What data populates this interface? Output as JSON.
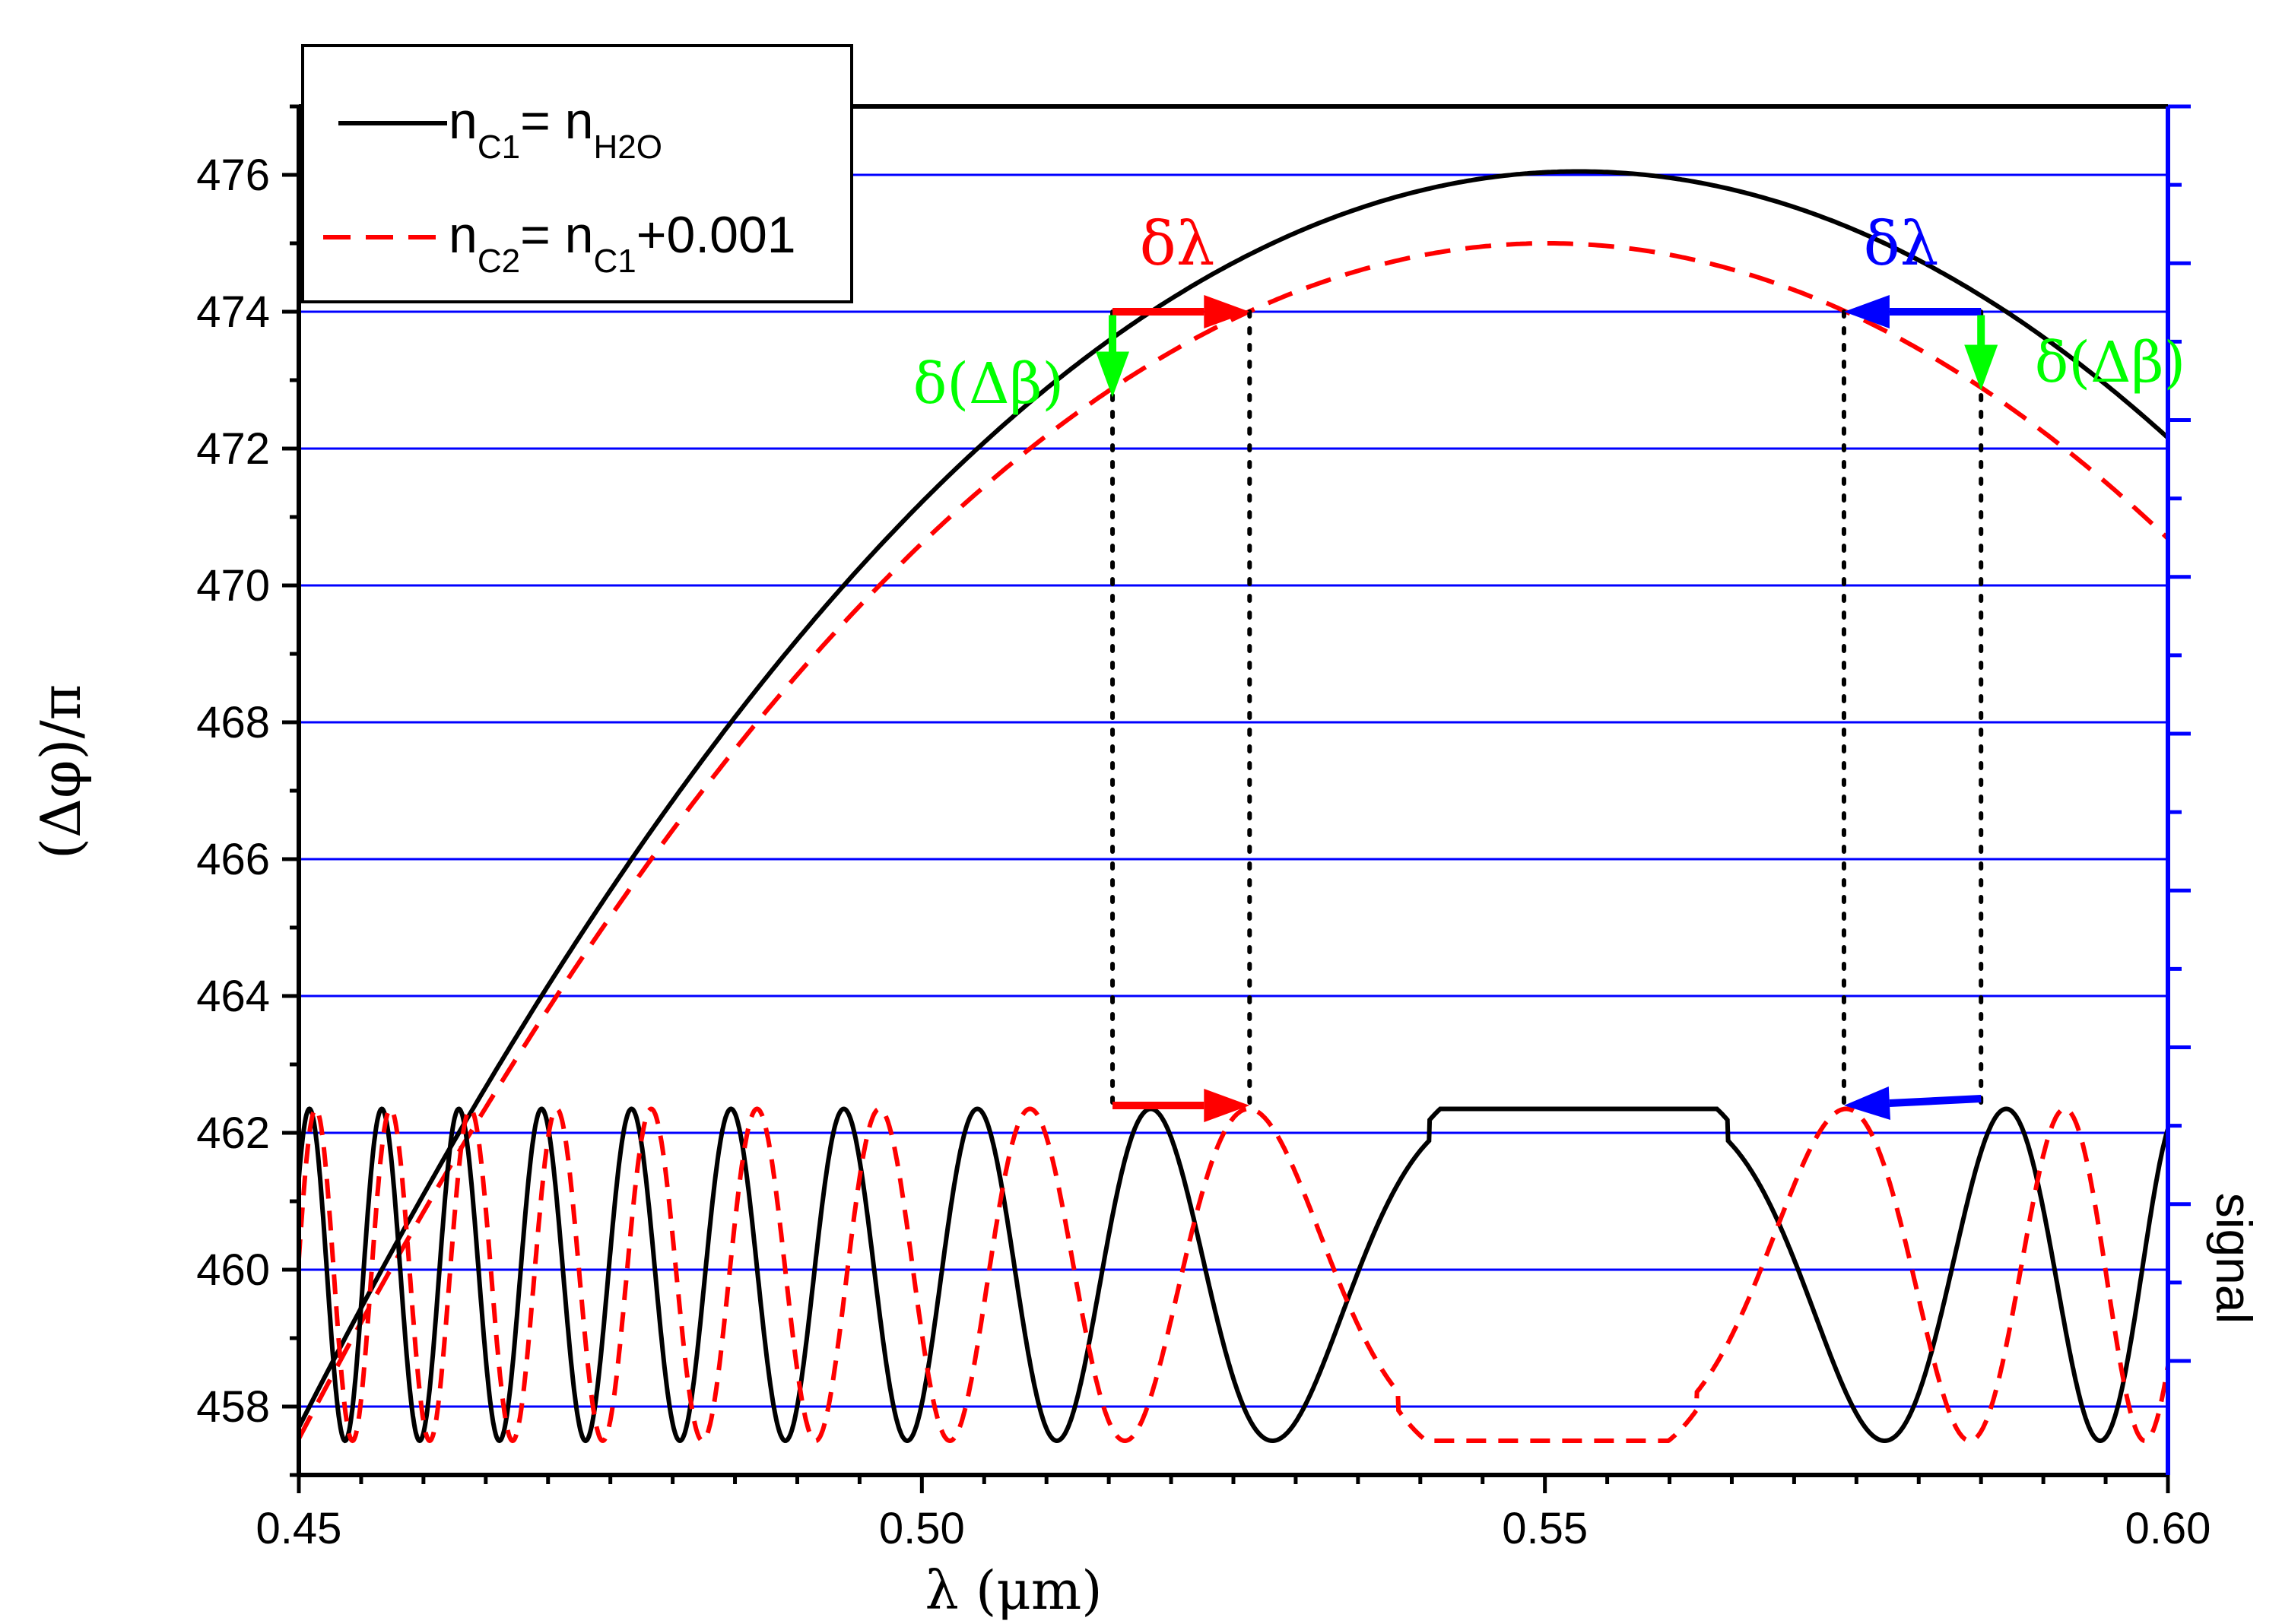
{
  "chart_data": {
    "type": "line",
    "title": "",
    "xlabel": "λ (μm)",
    "ylabel": "(Δφ)/π",
    "y2label": "signal",
    "xlim": [
      0.45,
      0.6
    ],
    "ylim": [
      457.0,
      477.0
    ],
    "xticks": [
      0.45,
      0.5,
      0.55,
      0.6
    ],
    "xtick_labels": [
      "0.45",
      "0.50",
      "0.55",
      "0.60"
    ],
    "yticks": [
      458,
      460,
      462,
      464,
      466,
      468,
      470,
      472,
      474,
      476
    ],
    "ytick_labels": [
      "458",
      "460",
      "462",
      "464",
      "466",
      "468",
      "470",
      "472",
      "474",
      "476"
    ],
    "grid_lines_y": [
      458,
      460,
      462,
      464,
      466,
      468,
      470,
      472,
      474,
      476
    ],
    "colors": {
      "axis": "#000000",
      "right_axis": "#0000ff",
      "grid": "#0000ff",
      "series1": "#000000",
      "series2": "#ff0000",
      "red_arrow": "#ff0000",
      "blue_arrow": "#0000ff",
      "green_arrow": "#00ff00"
    },
    "legend": {
      "position": "top-left",
      "entries": [
        {
          "series": "phase_c1",
          "label_main": "n",
          "label_sub": "C1",
          "label_mid": "= n",
          "label_sub2": "H2O",
          "label_tail": ""
        },
        {
          "series": "phase_c2",
          "label_main": "n",
          "label_sub": "C2",
          "label_mid": "= n",
          "label_sub2": "C1",
          "label_tail": "+0.001"
        }
      ]
    },
    "phase_curves": {
      "note": "(Δφ)/π vs λ; modeled as parabola peak_value - k*(λ - peak_lambda)^2",
      "series": [
        {
          "name": "phase_c1",
          "style": "solid",
          "peak_lambda": 0.5527,
          "peak_value": 476.05,
          "curvature": 1740
        },
        {
          "name": "phase_c2",
          "style": "dashed",
          "peak_lambda": 0.5502,
          "peak_value": 475.0,
          "curvature": 1740
        }
      ]
    },
    "signal_curves": {
      "note": "Transmission signal on right axis, mapped between levels 457.5 and 462.35 of left scale",
      "low_level": 457.5,
      "high_level": 462.35,
      "flat_top_half_width": 0.3,
      "series": [
        {
          "name": "signal_c1",
          "style": "solid",
          "source_phase": "phase_c1"
        },
        {
          "name": "signal_c2",
          "style": "dashed",
          "source_phase": "phase_c2"
        }
      ]
    },
    "guide_lines": {
      "x_values": [
        0.5153,
        0.5263,
        0.574,
        0.585
      ],
      "y_top": 474.0,
      "y_bottom": 462.4
    },
    "arrows": [
      {
        "name": "red-arrow-top",
        "color_key": "red_arrow",
        "from": [
          0.5153,
          474.0
        ],
        "to": [
          0.5263,
          474.0
        ]
      },
      {
        "name": "blue-arrow-top",
        "color_key": "blue_arrow",
        "from": [
          0.585,
          474.0
        ],
        "to": [
          0.574,
          474.0
        ]
      },
      {
        "name": "red-arrow-bottom",
        "color_key": "red_arrow",
        "from": [
          0.5153,
          462.4
        ],
        "to": [
          0.5263,
          462.4
        ]
      },
      {
        "name": "blue-arrow-bottom",
        "color_key": "blue_arrow",
        "from": [
          0.585,
          462.5
        ],
        "to": [
          0.574,
          462.4
        ]
      },
      {
        "name": "green-arrow-left",
        "color_key": "green_arrow",
        "from": [
          0.5153,
          473.95
        ],
        "to": [
          0.5153,
          472.75
        ]
      },
      {
        "name": "green-arrow-right",
        "color_key": "green_arrow",
        "from": [
          0.585,
          473.95
        ],
        "to": [
          0.585,
          472.85
        ]
      }
    ],
    "annotations": {
      "delta_lambda_red": "δλ",
      "delta_lambda_blue": "δλ",
      "delta_beta_left": "δ(Δβ)",
      "delta_beta_right": "δ(Δβ)"
    }
  }
}
